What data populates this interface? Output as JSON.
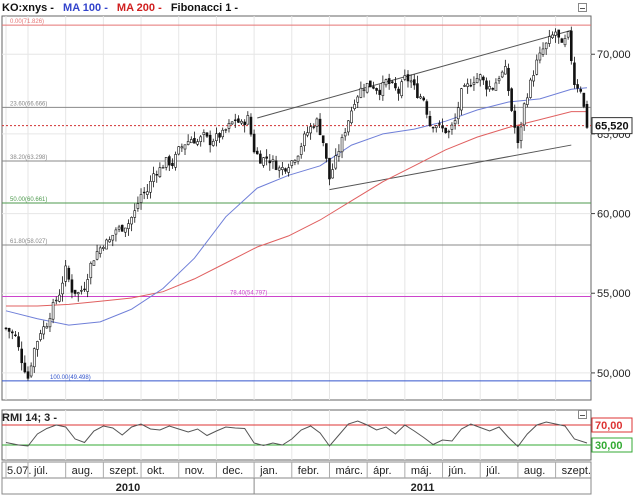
{
  "colors": {
    "price": "#111111",
    "ma100": "#6f7fd8",
    "ma200": "#e06060",
    "fib_red": "#e57373",
    "fib_green": "#4e9a4e",
    "fib_gray": "#888888",
    "fib_magenta": "#cc44cc",
    "fib_blue": "#3355cc",
    "rmi_upper": "#dd3333",
    "rmi_lower": "#33aa33",
    "last_price_line": "#d03030"
  },
  "legend": {
    "symbol": "KO:xnys -",
    "ma100": "MA 100 -",
    "ma200": "MA 200 -",
    "fib": "Fibonacci 1 -"
  },
  "rmi_legend": {
    "label": "RMI 14; 3 -"
  },
  "chart_data": {
    "type": "candlestick",
    "title": "KO:xnys",
    "y_axis_ticks": [
      "70,000",
      "65,000",
      "60,000",
      "55,000",
      "50,000"
    ],
    "y_tick_values": [
      70,
      65,
      60,
      55,
      50
    ],
    "ylim": [
      48.3,
      72.4
    ],
    "last_price": {
      "value": 65.52,
      "label": "65,520"
    },
    "x_month_labels": [
      "5.07.",
      "júl.",
      "aug.",
      "szept.",
      "okt.",
      "nov.",
      "dec.",
      "jan.",
      "febr.",
      "márc.",
      "ápr.",
      "máj.",
      "jún.",
      "júl.",
      "aug.",
      "szept."
    ],
    "x_month_index": [
      0,
      7,
      19,
      31,
      43,
      55,
      67,
      79,
      91,
      103,
      115,
      127,
      139,
      151,
      163,
      175
    ],
    "x_year_labels": [
      "2010",
      "2011"
    ],
    "bar_count": 186,
    "fibonacci": [
      {
        "label": "0.00(71.826)",
        "value": 71.826,
        "color": "fib_red"
      },
      {
        "label": "23.60(66.666)",
        "value": 66.666,
        "color": "fib_gray"
      },
      {
        "label": "38.20(63.298)",
        "value": 63.298,
        "color": "fib_gray"
      },
      {
        "label": "50.00(60.661)",
        "value": 60.661,
        "color": "fib_green"
      },
      {
        "label": "61.80(58.027)",
        "value": 58.027,
        "color": "fib_gray"
      },
      {
        "label": "78.40(54.797)",
        "value": 54.797,
        "color": "fib_magenta"
      },
      {
        "label": "100.00(49.498)",
        "value": 49.498,
        "color": "fib_blue"
      }
    ],
    "channel": {
      "upper": [
        [
          80,
          66.0
        ],
        [
          180,
          71.5
        ]
      ],
      "lower": [
        [
          103,
          61.5
        ],
        [
          180,
          64.3
        ]
      ]
    },
    "price_path": [
      [
        0,
        52.8
      ],
      [
        3,
        52.3
      ],
      [
        5,
        50.8
      ],
      [
        7,
        49.7
      ],
      [
        9,
        51.5
      ],
      [
        11,
        52.6
      ],
      [
        13,
        53.1
      ],
      [
        15,
        54.2
      ],
      [
        17,
        55.0
      ],
      [
        19,
        56.5
      ],
      [
        21,
        55.2
      ],
      [
        23,
        55.0
      ],
      [
        25,
        55.4
      ],
      [
        27,
        56.8
      ],
      [
        29,
        57.6
      ],
      [
        31,
        58.1
      ],
      [
        33,
        58.3
      ],
      [
        35,
        59.0
      ],
      [
        37,
        59.1
      ],
      [
        39,
        59.4
      ],
      [
        41,
        60.1
      ],
      [
        43,
        61.2
      ],
      [
        45,
        61.4
      ],
      [
        47,
        62.5
      ],
      [
        49,
        62.8
      ],
      [
        51,
        63.3
      ],
      [
        53,
        63.1
      ],
      [
        55,
        64.0
      ],
      [
        57,
        64.4
      ],
      [
        59,
        64.7
      ],
      [
        61,
        64.5
      ],
      [
        63,
        64.9
      ],
      [
        65,
        64.5
      ],
      [
        67,
        64.8
      ],
      [
        69,
        65.0
      ],
      [
        71,
        65.5
      ],
      [
        73,
        65.9
      ],
      [
        75,
        65.6
      ],
      [
        77,
        66.0
      ],
      [
        79,
        64.0
      ],
      [
        81,
        63.4
      ],
      [
        83,
        63.5
      ],
      [
        85,
        63.2
      ],
      [
        87,
        62.8
      ],
      [
        89,
        62.9
      ],
      [
        91,
        63.3
      ],
      [
        93,
        63.8
      ],
      [
        95,
        64.8
      ],
      [
        97,
        65.4
      ],
      [
        99,
        65.8
      ],
      [
        101,
        64.5
      ],
      [
        103,
        62.2
      ],
      [
        105,
        63.4
      ],
      [
        107,
        64.6
      ],
      [
        109,
        65.9
      ],
      [
        111,
        67.1
      ],
      [
        113,
        67.8
      ],
      [
        115,
        68.1
      ],
      [
        117,
        68.0
      ],
      [
        119,
        67.7
      ],
      [
        121,
        68.3
      ],
      [
        123,
        68.0
      ],
      [
        125,
        67.6
      ],
      [
        127,
        68.5
      ],
      [
        129,
        68.3
      ],
      [
        131,
        67.5
      ],
      [
        133,
        67.2
      ],
      [
        135,
        65.6
      ],
      [
        137,
        65.6
      ],
      [
        139,
        65.3
      ],
      [
        141,
        65.1
      ],
      [
        143,
        65.8
      ],
      [
        145,
        67.6
      ],
      [
        147,
        68.0
      ],
      [
        149,
        68.4
      ],
      [
        151,
        68.6
      ],
      [
        153,
        68.0
      ],
      [
        155,
        67.9
      ],
      [
        157,
        68.6
      ],
      [
        159,
        69.0
      ],
      [
        161,
        66.5
      ],
      [
        163,
        64.3
      ],
      [
        165,
        66.8
      ],
      [
        167,
        68.2
      ],
      [
        169,
        69.5
      ],
      [
        171,
        70.3
      ],
      [
        173,
        70.9
      ],
      [
        175,
        71.4
      ],
      [
        177,
        70.5
      ],
      [
        179,
        71.2
      ],
      [
        181,
        68.2
      ],
      [
        183,
        67.8
      ],
      [
        185,
        65.52
      ]
    ],
    "ma100_path": [
      [
        0,
        53.9
      ],
      [
        10,
        53.4
      ],
      [
        20,
        53.0
      ],
      [
        30,
        53.2
      ],
      [
        40,
        54.0
      ],
      [
        50,
        55.3
      ],
      [
        60,
        57.2
      ],
      [
        70,
        59.8
      ],
      [
        80,
        61.6
      ],
      [
        90,
        62.4
      ],
      [
        100,
        63.0
      ],
      [
        110,
        64.3
      ],
      [
        120,
        65.0
      ],
      [
        130,
        65.3
      ],
      [
        140,
        65.8
      ],
      [
        150,
        66.5
      ],
      [
        160,
        67.0
      ],
      [
        170,
        67.2
      ],
      [
        180,
        67.8
      ],
      [
        185,
        67.9
      ]
    ],
    "ma200_path": [
      [
        0,
        54.2
      ],
      [
        10,
        54.2
      ],
      [
        20,
        54.3
      ],
      [
        30,
        54.5
      ],
      [
        40,
        54.7
      ],
      [
        50,
        55.1
      ],
      [
        60,
        55.9
      ],
      [
        70,
        56.9
      ],
      [
        80,
        57.9
      ],
      [
        90,
        58.6
      ],
      [
        100,
        59.6
      ],
      [
        110,
        60.8
      ],
      [
        120,
        62.0
      ],
      [
        130,
        63.0
      ],
      [
        140,
        64.0
      ],
      [
        150,
        64.8
      ],
      [
        160,
        65.4
      ],
      [
        170,
        65.9
      ],
      [
        180,
        66.4
      ],
      [
        185,
        66.4
      ]
    ],
    "rmi": {
      "levels": [
        70,
        30
      ],
      "level_labels": [
        "70,00",
        "30,00"
      ],
      "ylim": [
        0,
        100
      ],
      "path": [
        [
          0,
          35
        ],
        [
          4,
          30
        ],
        [
          7,
          28
        ],
        [
          10,
          52
        ],
        [
          13,
          63
        ],
        [
          16,
          70
        ],
        [
          19,
          66
        ],
        [
          22,
          42
        ],
        [
          25,
          35
        ],
        [
          28,
          58
        ],
        [
          31,
          68
        ],
        [
          34,
          64
        ],
        [
          37,
          50
        ],
        [
          40,
          66
        ],
        [
          43,
          72
        ],
        [
          46,
          62
        ],
        [
          49,
          60
        ],
        [
          52,
          68
        ],
        [
          55,
          62
        ],
        [
          58,
          56
        ],
        [
          61,
          62
        ],
        [
          64,
          49
        ],
        [
          67,
          58
        ],
        [
          70,
          66
        ],
        [
          73,
          64
        ],
        [
          76,
          63
        ],
        [
          79,
          34
        ],
        [
          82,
          29
        ],
        [
          85,
          34
        ],
        [
          88,
          30
        ],
        [
          91,
          42
        ],
        [
          94,
          60
        ],
        [
          97,
          68
        ],
        [
          100,
          54
        ],
        [
          103,
          28
        ],
        [
          106,
          50
        ],
        [
          109,
          72
        ],
        [
          112,
          78
        ],
        [
          115,
          70
        ],
        [
          118,
          60
        ],
        [
          121,
          66
        ],
        [
          124,
          52
        ],
        [
          127,
          70
        ],
        [
          130,
          58
        ],
        [
          133,
          45
        ],
        [
          136,
          31
        ],
        [
          139,
          40
        ],
        [
          142,
          38
        ],
        [
          145,
          62
        ],
        [
          148,
          72
        ],
        [
          151,
          65
        ],
        [
          154,
          58
        ],
        [
          157,
          66
        ],
        [
          160,
          45
        ],
        [
          163,
          27
        ],
        [
          166,
          52
        ],
        [
          169,
          70
        ],
        [
          172,
          76
        ],
        [
          175,
          72
        ],
        [
          178,
          68
        ],
        [
          181,
          42
        ],
        [
          185,
          34
        ]
      ]
    }
  }
}
